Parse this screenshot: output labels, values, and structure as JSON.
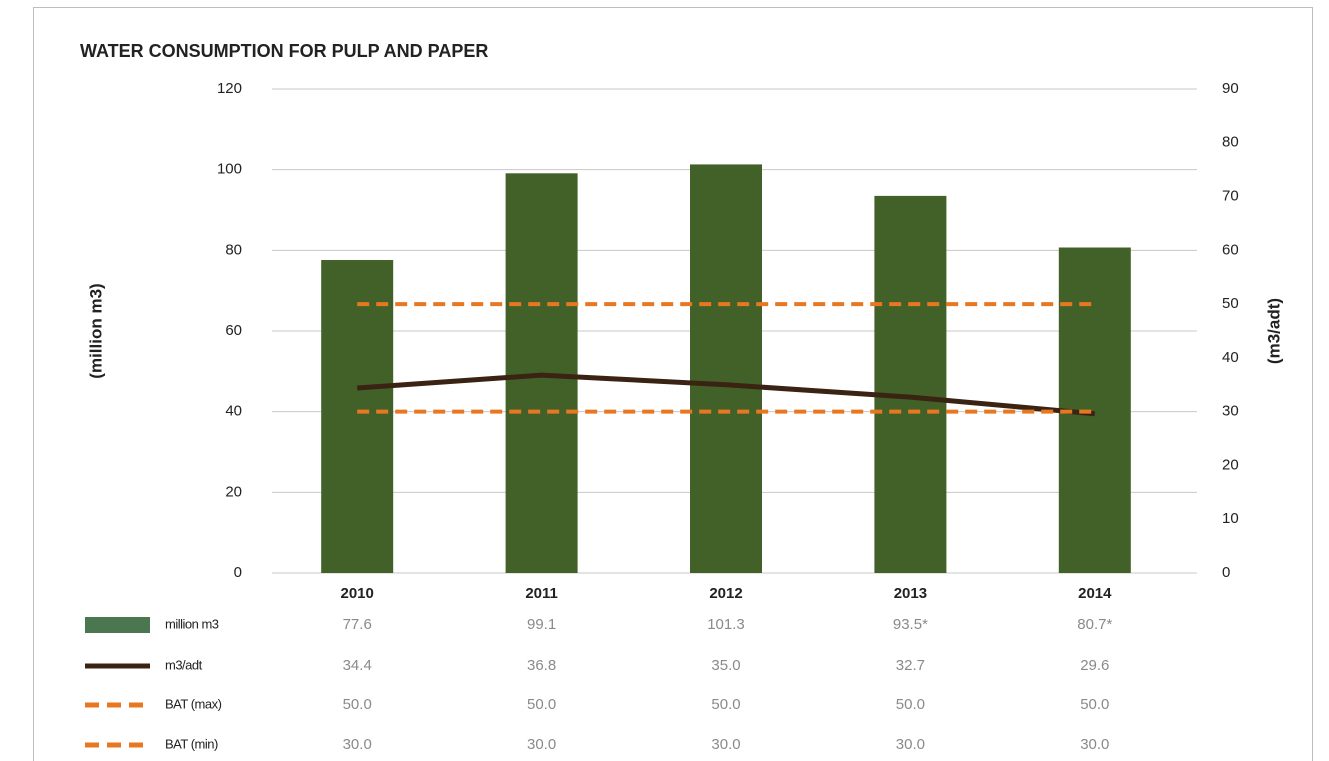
{
  "chart_data": {
    "type": "bar-line",
    "title": "WATER CONSUMPTION FOR PULP AND PAPER",
    "y_label": "(million m3)",
    "y2_label": "(m3/adt)",
    "categories": [
      "2010",
      "2011",
      "2012",
      "2013",
      "2014"
    ],
    "ylim": [
      0,
      120
    ],
    "yticks": [
      0,
      20,
      40,
      60,
      80,
      100,
      120
    ],
    "y2lim": [
      0,
      90
    ],
    "y2ticks": [
      0,
      10,
      20,
      30,
      40,
      50,
      60,
      70,
      80,
      90
    ],
    "grid": true,
    "series": [
      {
        "name": "million m3",
        "type": "bar",
        "color": "#426128",
        "legend_color": "#4a7650",
        "values": [
          77.6,
          99.1,
          101.3,
          93.5,
          80.7
        ],
        "value_labels": [
          "77.6",
          "99.1",
          "101.3",
          "93.5*",
          "80.7*"
        ]
      },
      {
        "name": "m3/adt",
        "type": "line",
        "axis": "y2",
        "color": "#3b2314",
        "values": [
          34.4,
          36.8,
          35.0,
          32.7,
          29.6
        ],
        "value_labels": [
          "34.4",
          "36.8",
          "35.0",
          "32.7",
          "29.6"
        ]
      },
      {
        "name": "BAT (max)",
        "type": "dashed",
        "axis": "y2",
        "color": "#e87722",
        "values": [
          50.0,
          50.0,
          50.0,
          50.0,
          50.0
        ],
        "value_labels": [
          "50.0",
          "50.0",
          "50.0",
          "50.0",
          "50.0"
        ]
      },
      {
        "name": "BAT (min)",
        "type": "dashed",
        "axis": "y2",
        "color": "#e87722",
        "values": [
          30.0,
          30.0,
          30.0,
          30.0,
          30.0
        ],
        "value_labels": [
          "30.0",
          "30.0",
          "30.0",
          "30.0",
          "30.0"
        ]
      }
    ]
  }
}
